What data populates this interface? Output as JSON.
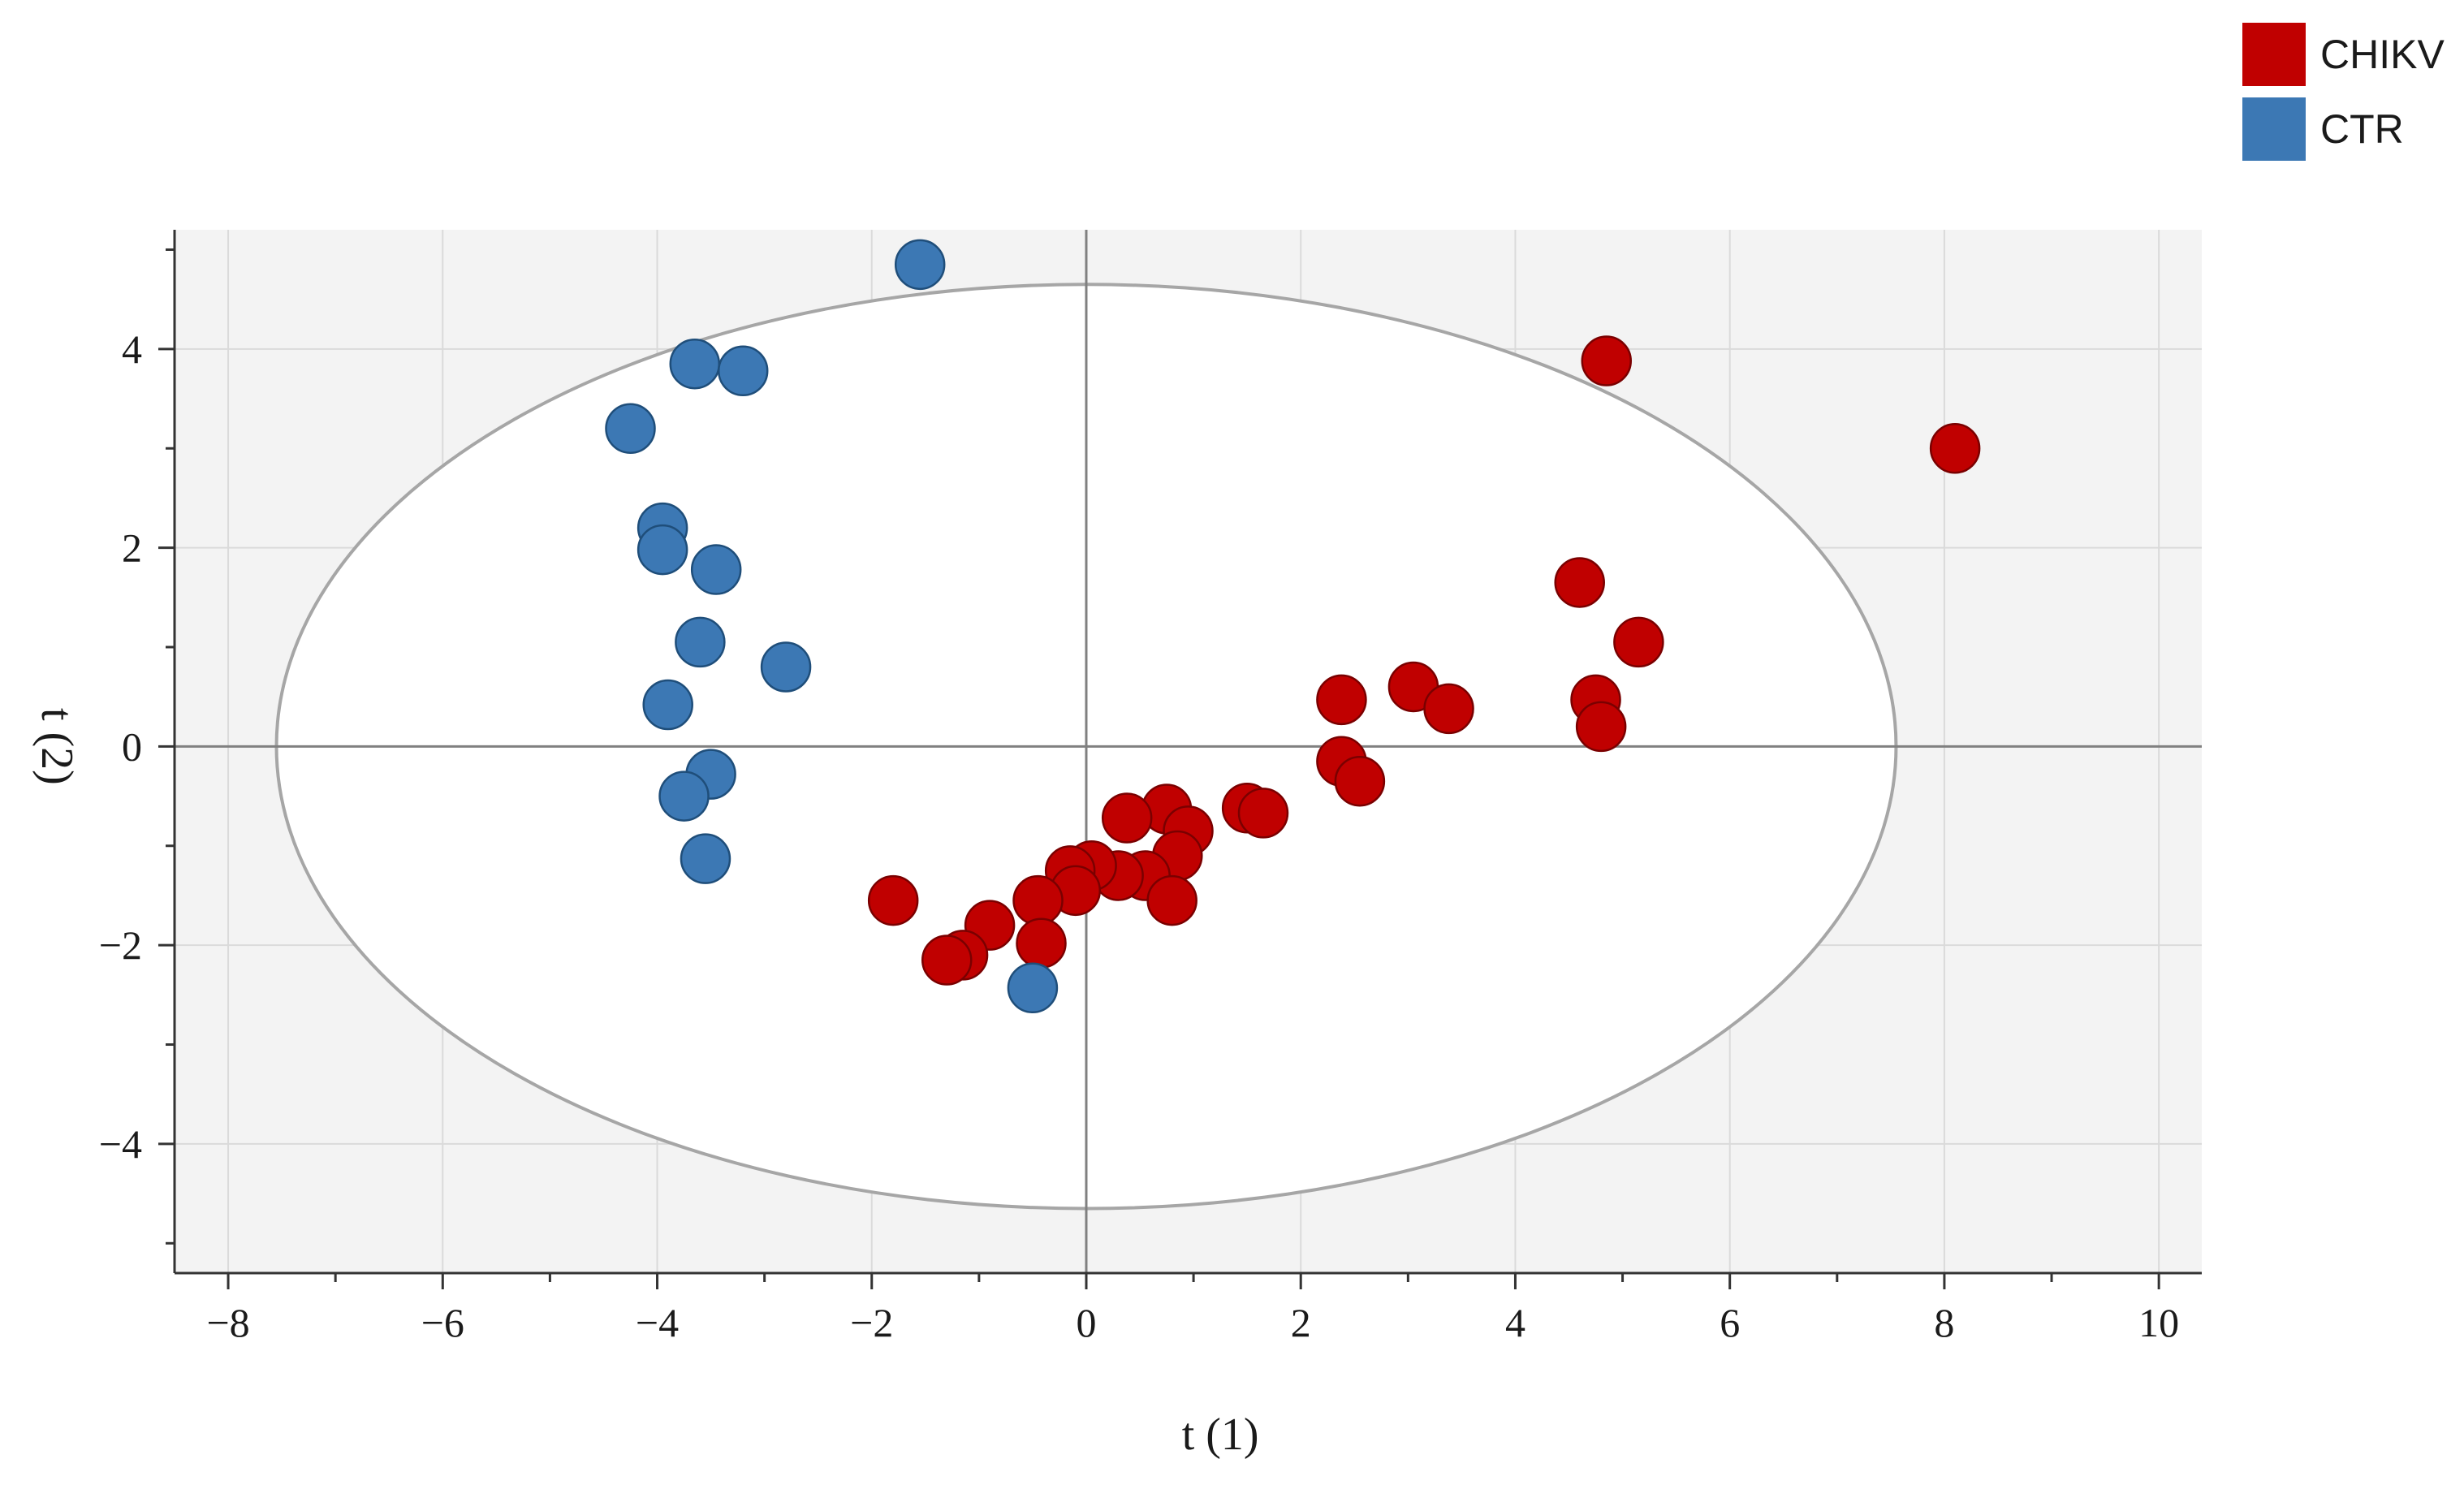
{
  "chart_data": {
    "type": "scatter",
    "title": "",
    "xlabel": "t (1)",
    "ylabel": "t (2)",
    "xlim": [
      -8.5,
      10.4
    ],
    "ylim": [
      -5.3,
      5.2
    ],
    "x_ticks": [
      -8,
      -6,
      -4,
      -2,
      0,
      2,
      4,
      6,
      8,
      10
    ],
    "y_ticks": [
      -4,
      -2,
      0,
      2,
      4
    ],
    "x_tick_labels": [
      "−8",
      "−6",
      "−4",
      "−2",
      "0",
      "2",
      "4",
      "6",
      "8",
      "10"
    ],
    "y_tick_labels": [
      "−4",
      "−2",
      "0",
      "2",
      "4"
    ],
    "grid": true,
    "legend_position": "top-right",
    "ellipse": {
      "center": [
        0,
        0
      ],
      "semi_axis_x": 7.55,
      "semi_axis_y": 4.65
    },
    "series": [
      {
        "name": "CHIKV",
        "color": "#c00000",
        "points": [
          [
            4.85,
            3.88
          ],
          [
            8.1,
            3.0
          ],
          [
            4.6,
            1.65
          ],
          [
            5.15,
            1.05
          ],
          [
            3.05,
            0.6
          ],
          [
            3.38,
            0.38
          ],
          [
            2.38,
            0.47
          ],
          [
            4.75,
            0.47
          ],
          [
            4.8,
            0.2
          ],
          [
            2.38,
            -0.15
          ],
          [
            2.55,
            -0.35
          ],
          [
            1.5,
            -0.62
          ],
          [
            1.65,
            -0.67
          ],
          [
            0.75,
            -0.63
          ],
          [
            0.38,
            -0.72
          ],
          [
            0.95,
            -0.85
          ],
          [
            0.85,
            -1.1
          ],
          [
            0.55,
            -1.3
          ],
          [
            0.8,
            -1.55
          ],
          [
            0.3,
            -1.3
          ],
          [
            0.05,
            -1.2
          ],
          [
            -0.15,
            -1.25
          ],
          [
            -0.1,
            -1.45
          ],
          [
            -0.45,
            -1.55
          ],
          [
            -0.42,
            -1.98
          ],
          [
            -0.9,
            -1.8
          ],
          [
            -1.15,
            -2.1
          ],
          [
            -1.3,
            -2.15
          ],
          [
            -1.8,
            -1.55
          ]
        ]
      },
      {
        "name": "CTR",
        "color": "#3c78b4",
        "points": [
          [
            -1.55,
            4.85
          ],
          [
            -3.65,
            3.85
          ],
          [
            -3.2,
            3.78
          ],
          [
            -4.25,
            3.2
          ],
          [
            -3.95,
            2.2
          ],
          [
            -3.95,
            1.98
          ],
          [
            -3.45,
            1.78
          ],
          [
            -3.6,
            1.05
          ],
          [
            -2.8,
            0.8
          ],
          [
            -3.9,
            0.42
          ],
          [
            -3.5,
            -0.28
          ],
          [
            -3.75,
            -0.5
          ],
          [
            -3.55,
            -1.13
          ],
          [
            -0.5,
            -2.43
          ]
        ]
      }
    ]
  },
  "legend": {
    "items": [
      {
        "label": "CHIKV",
        "color": "#c00000"
      },
      {
        "label": "CTR",
        "color": "#3c78b4"
      }
    ]
  }
}
